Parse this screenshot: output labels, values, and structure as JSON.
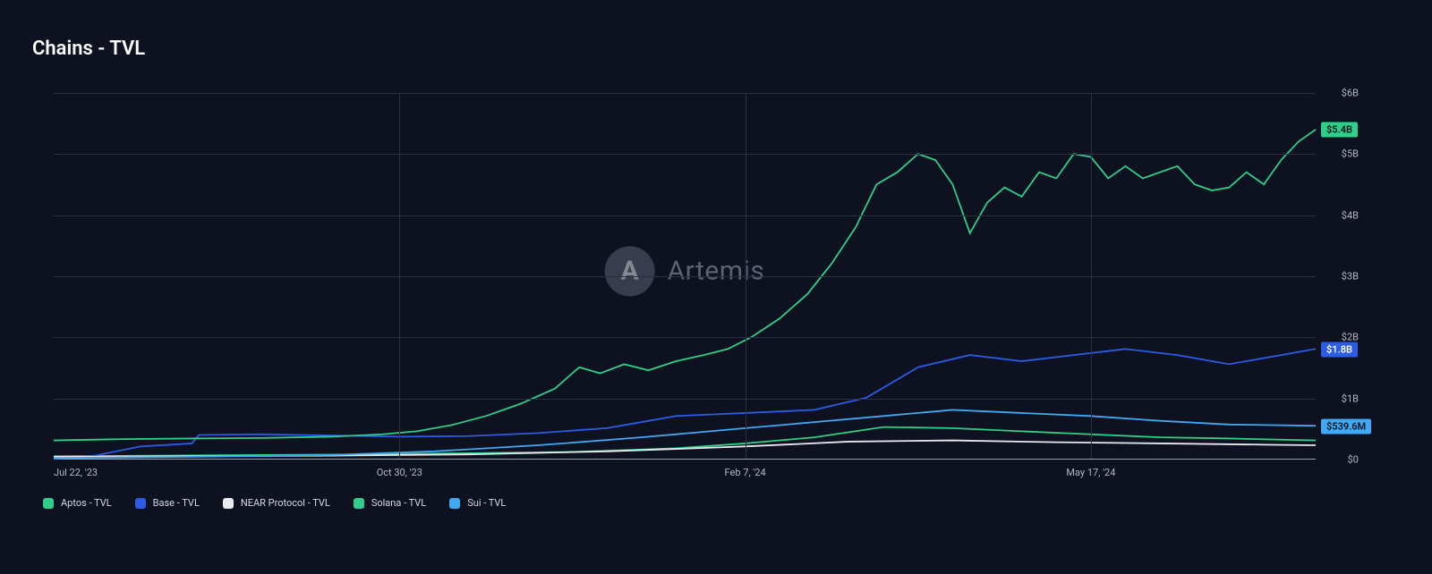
{
  "title": "Chains - TVL",
  "watermark": {
    "brand": "Artemis",
    "logo_letter": "A"
  },
  "chart": {
    "type": "line",
    "background_color": "#0d1120",
    "grid_color": "#2a3040",
    "axis_color": "#9aa3b2",
    "label_color": "#b0b8c6",
    "label_fontsize": 11,
    "title_fontsize": 22,
    "y_axis": {
      "min": 0,
      "max": 6000000000,
      "ticks": [
        {
          "value": 0,
          "label": "$0"
        },
        {
          "value": 1000000000,
          "label": "$1B"
        },
        {
          "value": 2000000000,
          "label": "$2B"
        },
        {
          "value": 3000000000,
          "label": "$3B"
        },
        {
          "value": 4000000000,
          "label": "$4B"
        },
        {
          "value": 5000000000,
          "label": "$5B"
        },
        {
          "value": 6000000000,
          "label": "$6B"
        }
      ]
    },
    "x_axis": {
      "min": 0,
      "max": 365,
      "ticks": [
        {
          "value": 0,
          "label": "Jul 22, '23"
        },
        {
          "value": 100,
          "label": "Oct 30, '23"
        },
        {
          "value": 200,
          "label": "Feb 7, '24"
        },
        {
          "value": 300,
          "label": "May 17, '24"
        }
      ],
      "gridlines_at": [
        100,
        200,
        300
      ]
    },
    "series": [
      {
        "name": "Aptos - TVL",
        "color": "#2ecf88",
        "line_width": 1.8,
        "end_badge": null,
        "points": [
          [
            0,
            40000000
          ],
          [
            30,
            50000000
          ],
          [
            60,
            60000000
          ],
          [
            90,
            70000000
          ],
          [
            120,
            90000000
          ],
          [
            150,
            110000000
          ],
          [
            180,
            170000000
          ],
          [
            200,
            250000000
          ],
          [
            220,
            350000000
          ],
          [
            240,
            520000000
          ],
          [
            260,
            500000000
          ],
          [
            280,
            450000000
          ],
          [
            300,
            400000000
          ],
          [
            320,
            350000000
          ],
          [
            340,
            330000000
          ],
          [
            365,
            300000000
          ]
        ]
      },
      {
        "name": "Base - TVL",
        "color": "#2b5ce6",
        "line_width": 1.8,
        "end_badge": {
          "text": "$1.8B",
          "bg": "#2b5ce6",
          "fg": "#ffffff"
        },
        "points": [
          [
            0,
            0
          ],
          [
            12,
            50000000
          ],
          [
            25,
            200000000
          ],
          [
            40,
            250000000
          ],
          [
            42,
            390000000
          ],
          [
            60,
            400000000
          ],
          [
            80,
            380000000
          ],
          [
            100,
            360000000
          ],
          [
            120,
            370000000
          ],
          [
            140,
            420000000
          ],
          [
            160,
            500000000
          ],
          [
            180,
            700000000
          ],
          [
            200,
            750000000
          ],
          [
            220,
            800000000
          ],
          [
            235,
            1000000000
          ],
          [
            250,
            1500000000
          ],
          [
            265,
            1700000000
          ],
          [
            280,
            1600000000
          ],
          [
            295,
            1700000000
          ],
          [
            310,
            1800000000
          ],
          [
            325,
            1700000000
          ],
          [
            340,
            1550000000
          ],
          [
            355,
            1700000000
          ],
          [
            365,
            1800000000
          ]
        ]
      },
      {
        "name": "NEAR Protocol - TVL",
        "color": "#e8eaed",
        "line_width": 1.6,
        "end_badge": null,
        "points": [
          [
            0,
            30000000
          ],
          [
            40,
            40000000
          ],
          [
            80,
            50000000
          ],
          [
            120,
            70000000
          ],
          [
            160,
            120000000
          ],
          [
            200,
            200000000
          ],
          [
            230,
            280000000
          ],
          [
            260,
            300000000
          ],
          [
            290,
            270000000
          ],
          [
            320,
            250000000
          ],
          [
            350,
            230000000
          ],
          [
            365,
            220000000
          ]
        ]
      },
      {
        "name": "Solana - TVL",
        "color": "#2ecf88",
        "line_width": 1.8,
        "end_badge": {
          "text": "$5.4B",
          "bg": "#2ecf88",
          "fg": "#0b0f1a"
        },
        "points": [
          [
            0,
            300000000
          ],
          [
            20,
            320000000
          ],
          [
            40,
            330000000
          ],
          [
            60,
            340000000
          ],
          [
            80,
            360000000
          ],
          [
            95,
            400000000
          ],
          [
            105,
            450000000
          ],
          [
            115,
            550000000
          ],
          [
            125,
            700000000
          ],
          [
            135,
            900000000
          ],
          [
            145,
            1150000000
          ],
          [
            152,
            1500000000
          ],
          [
            158,
            1400000000
          ],
          [
            165,
            1550000000
          ],
          [
            172,
            1450000000
          ],
          [
            180,
            1600000000
          ],
          [
            188,
            1700000000
          ],
          [
            195,
            1800000000
          ],
          [
            202,
            2000000000
          ],
          [
            210,
            2300000000
          ],
          [
            218,
            2700000000
          ],
          [
            225,
            3200000000
          ],
          [
            232,
            3800000000
          ],
          [
            238,
            4500000000
          ],
          [
            244,
            4700000000
          ],
          [
            250,
            5000000000
          ],
          [
            255,
            4900000000
          ],
          [
            260,
            4500000000
          ],
          [
            265,
            3700000000
          ],
          [
            270,
            4200000000
          ],
          [
            275,
            4450000000
          ],
          [
            280,
            4300000000
          ],
          [
            285,
            4700000000
          ],
          [
            290,
            4600000000
          ],
          [
            295,
            5000000000
          ],
          [
            300,
            4950000000
          ],
          [
            305,
            4600000000
          ],
          [
            310,
            4800000000
          ],
          [
            315,
            4600000000
          ],
          [
            320,
            4700000000
          ],
          [
            325,
            4800000000
          ],
          [
            330,
            4500000000
          ],
          [
            335,
            4400000000
          ],
          [
            340,
            4450000000
          ],
          [
            345,
            4700000000
          ],
          [
            350,
            4500000000
          ],
          [
            355,
            4900000000
          ],
          [
            360,
            5200000000
          ],
          [
            365,
            5400000000
          ]
        ]
      },
      {
        "name": "Sui - TVL",
        "color": "#3fa9f5",
        "line_width": 1.8,
        "end_badge": {
          "text": "$539.6M",
          "bg": "#3fa9f5",
          "fg": "#0b0f1a"
        },
        "points": [
          [
            0,
            10000000
          ],
          [
            40,
            30000000
          ],
          [
            80,
            60000000
          ],
          [
            110,
            120000000
          ],
          [
            140,
            220000000
          ],
          [
            170,
            350000000
          ],
          [
            200,
            500000000
          ],
          [
            220,
            600000000
          ],
          [
            240,
            700000000
          ],
          [
            260,
            800000000
          ],
          [
            280,
            750000000
          ],
          [
            300,
            700000000
          ],
          [
            320,
            620000000
          ],
          [
            340,
            560000000
          ],
          [
            365,
            539600000
          ]
        ]
      }
    ],
    "legend": [
      {
        "label": "Aptos - TVL",
        "color": "#2ecf88"
      },
      {
        "label": "Base - TVL",
        "color": "#2b5ce6"
      },
      {
        "label": "NEAR Protocol - TVL",
        "color": "#e8eaed"
      },
      {
        "label": "Solana - TVL",
        "color": "#2ecf88"
      },
      {
        "label": "Sui - TVL",
        "color": "#3fa9f5"
      }
    ]
  }
}
